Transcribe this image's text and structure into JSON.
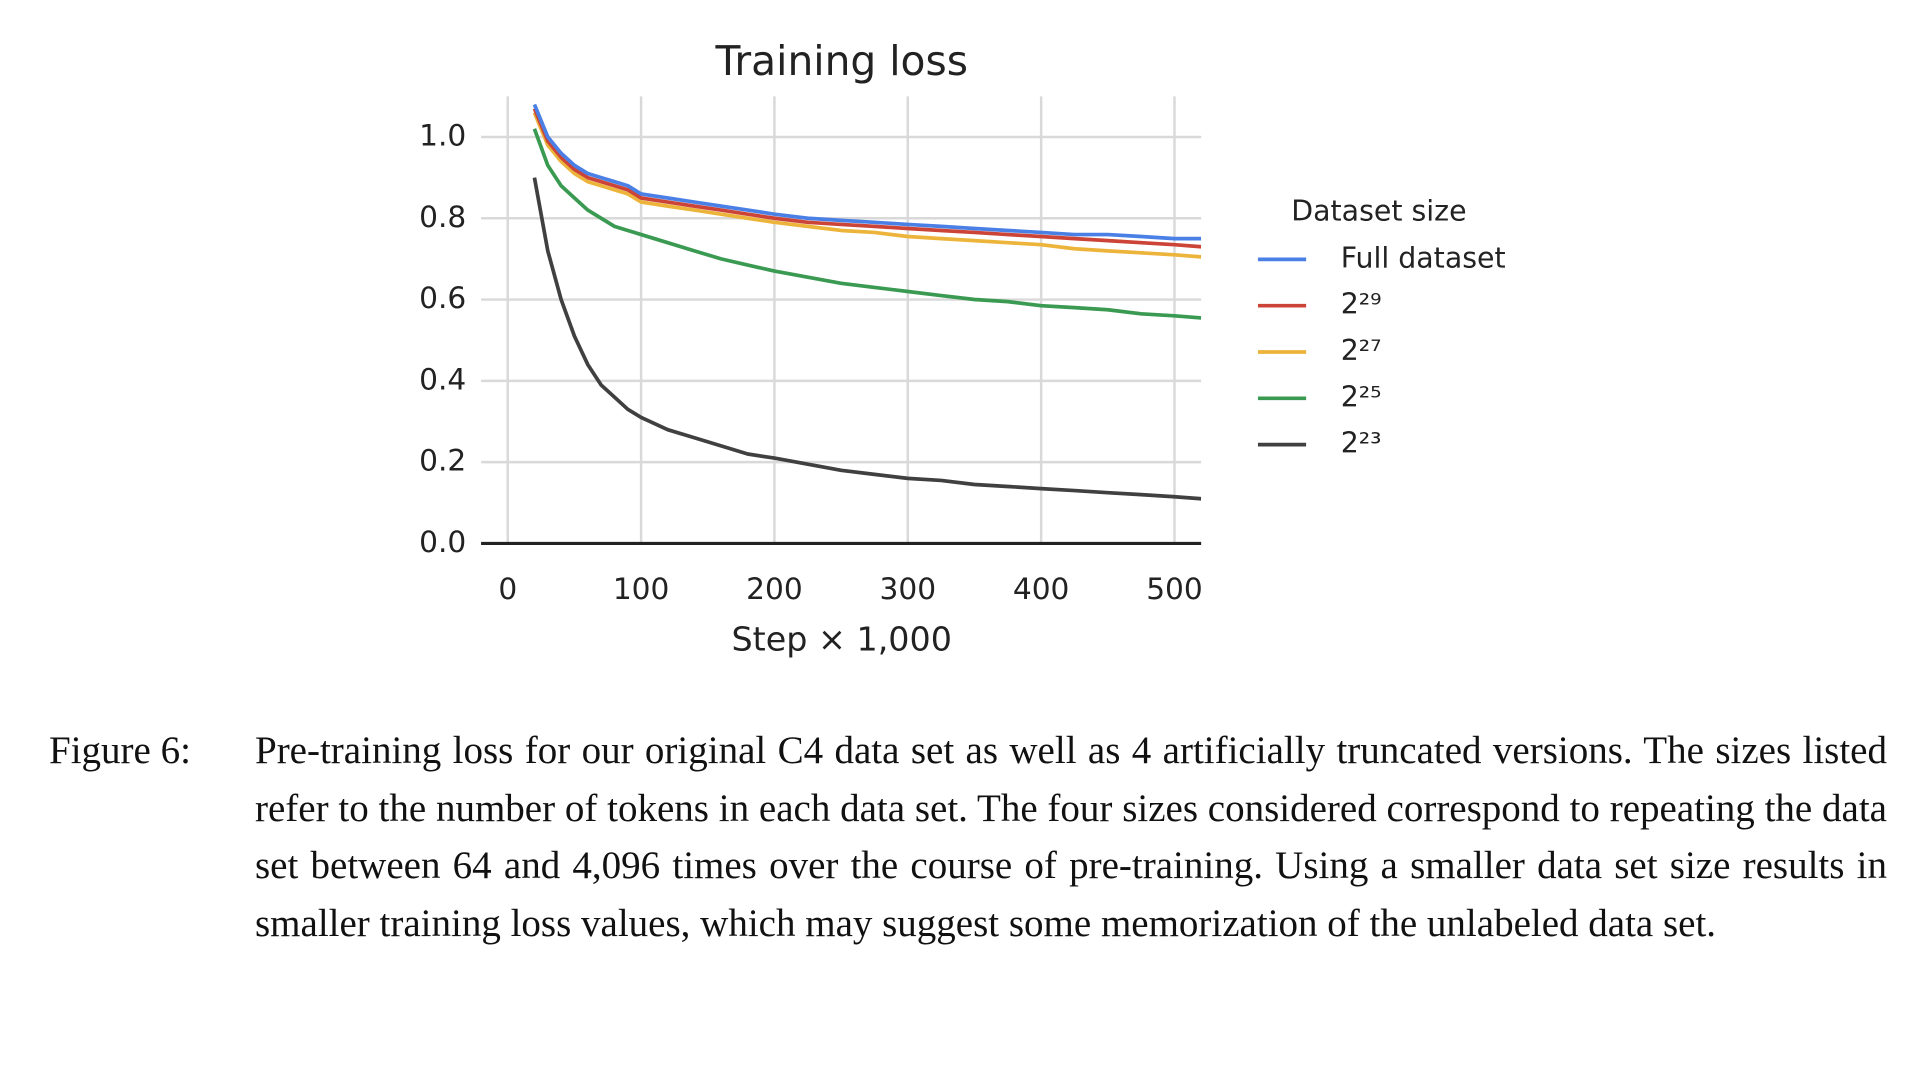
{
  "chart_data": {
    "type": "line",
    "title": "Training loss",
    "xlabel": "Step × 1,000",
    "x": [
      20,
      30,
      40,
      50,
      60,
      70,
      80,
      90,
      100,
      120,
      140,
      160,
      180,
      200,
      225,
      250,
      275,
      300,
      325,
      350,
      375,
      400,
      425,
      450,
      475,
      500,
      520
    ],
    "series": [
      {
        "name": "Full dataset",
        "color": "#4a7fe6",
        "values": [
          1.08,
          1.0,
          0.96,
          0.93,
          0.91,
          0.9,
          0.89,
          0.88,
          0.86,
          0.85,
          0.84,
          0.83,
          0.82,
          0.81,
          0.8,
          0.795,
          0.79,
          0.785,
          0.78,
          0.775,
          0.77,
          0.765,
          0.76,
          0.76,
          0.755,
          0.75,
          0.75
        ]
      },
      {
        "name": "2²⁹",
        "color": "#cc4437",
        "values": [
          1.07,
          0.99,
          0.95,
          0.92,
          0.9,
          0.89,
          0.88,
          0.87,
          0.85,
          0.84,
          0.83,
          0.82,
          0.81,
          0.8,
          0.79,
          0.785,
          0.78,
          0.775,
          0.77,
          0.765,
          0.76,
          0.755,
          0.75,
          0.745,
          0.74,
          0.735,
          0.73
        ]
      },
      {
        "name": "2²⁷",
        "color": "#ecb43a",
        "values": [
          1.06,
          0.98,
          0.94,
          0.91,
          0.89,
          0.88,
          0.87,
          0.86,
          0.84,
          0.83,
          0.82,
          0.81,
          0.8,
          0.79,
          0.78,
          0.77,
          0.765,
          0.755,
          0.75,
          0.745,
          0.74,
          0.735,
          0.725,
          0.72,
          0.715,
          0.71,
          0.705
        ]
      },
      {
        "name": "2²⁵",
        "color": "#3a9a52",
        "values": [
          1.02,
          0.93,
          0.88,
          0.85,
          0.82,
          0.8,
          0.78,
          0.77,
          0.76,
          0.74,
          0.72,
          0.7,
          0.685,
          0.67,
          0.655,
          0.64,
          0.63,
          0.62,
          0.61,
          0.6,
          0.595,
          0.585,
          0.58,
          0.575,
          0.565,
          0.56,
          0.555
        ]
      },
      {
        "name": "2²³",
        "color": "#404040",
        "values": [
          0.9,
          0.72,
          0.6,
          0.51,
          0.44,
          0.39,
          0.36,
          0.33,
          0.31,
          0.28,
          0.26,
          0.24,
          0.22,
          0.21,
          0.195,
          0.18,
          0.17,
          0.16,
          0.155,
          0.145,
          0.14,
          0.135,
          0.13,
          0.125,
          0.12,
          0.115,
          0.11
        ]
      }
    ],
    "xlim": [
      -20,
      520
    ],
    "xticks": [
      0,
      100,
      200,
      300,
      400,
      500
    ],
    "ylim": [
      0,
      1.1
    ],
    "yticks": [
      {
        "value": 0,
        "label": "0.0"
      },
      {
        "value": 0.2,
        "label": "0.2"
      },
      {
        "value": 0.4,
        "label": "0.4"
      },
      {
        "value": 0.6,
        "label": "0.6"
      },
      {
        "value": 0.8,
        "label": "0.8"
      },
      {
        "value": 1,
        "label": "1.0"
      }
    ],
    "grid": true,
    "legend": "right",
    "legend_title": "Dataset size"
  },
  "caption": {
    "label": "Figure 6:",
    "text": "Pre-training loss for our original C4 data set as well as 4 artificially truncated versions. The sizes listed refer to the number of tokens in each data set. The four sizes considered correspond to repeating the data set between 64 and 4,096 times over the course of pre-training. Using a smaller data set size results in smaller training loss values, which may suggest some memorization of the unlabeled data set."
  }
}
